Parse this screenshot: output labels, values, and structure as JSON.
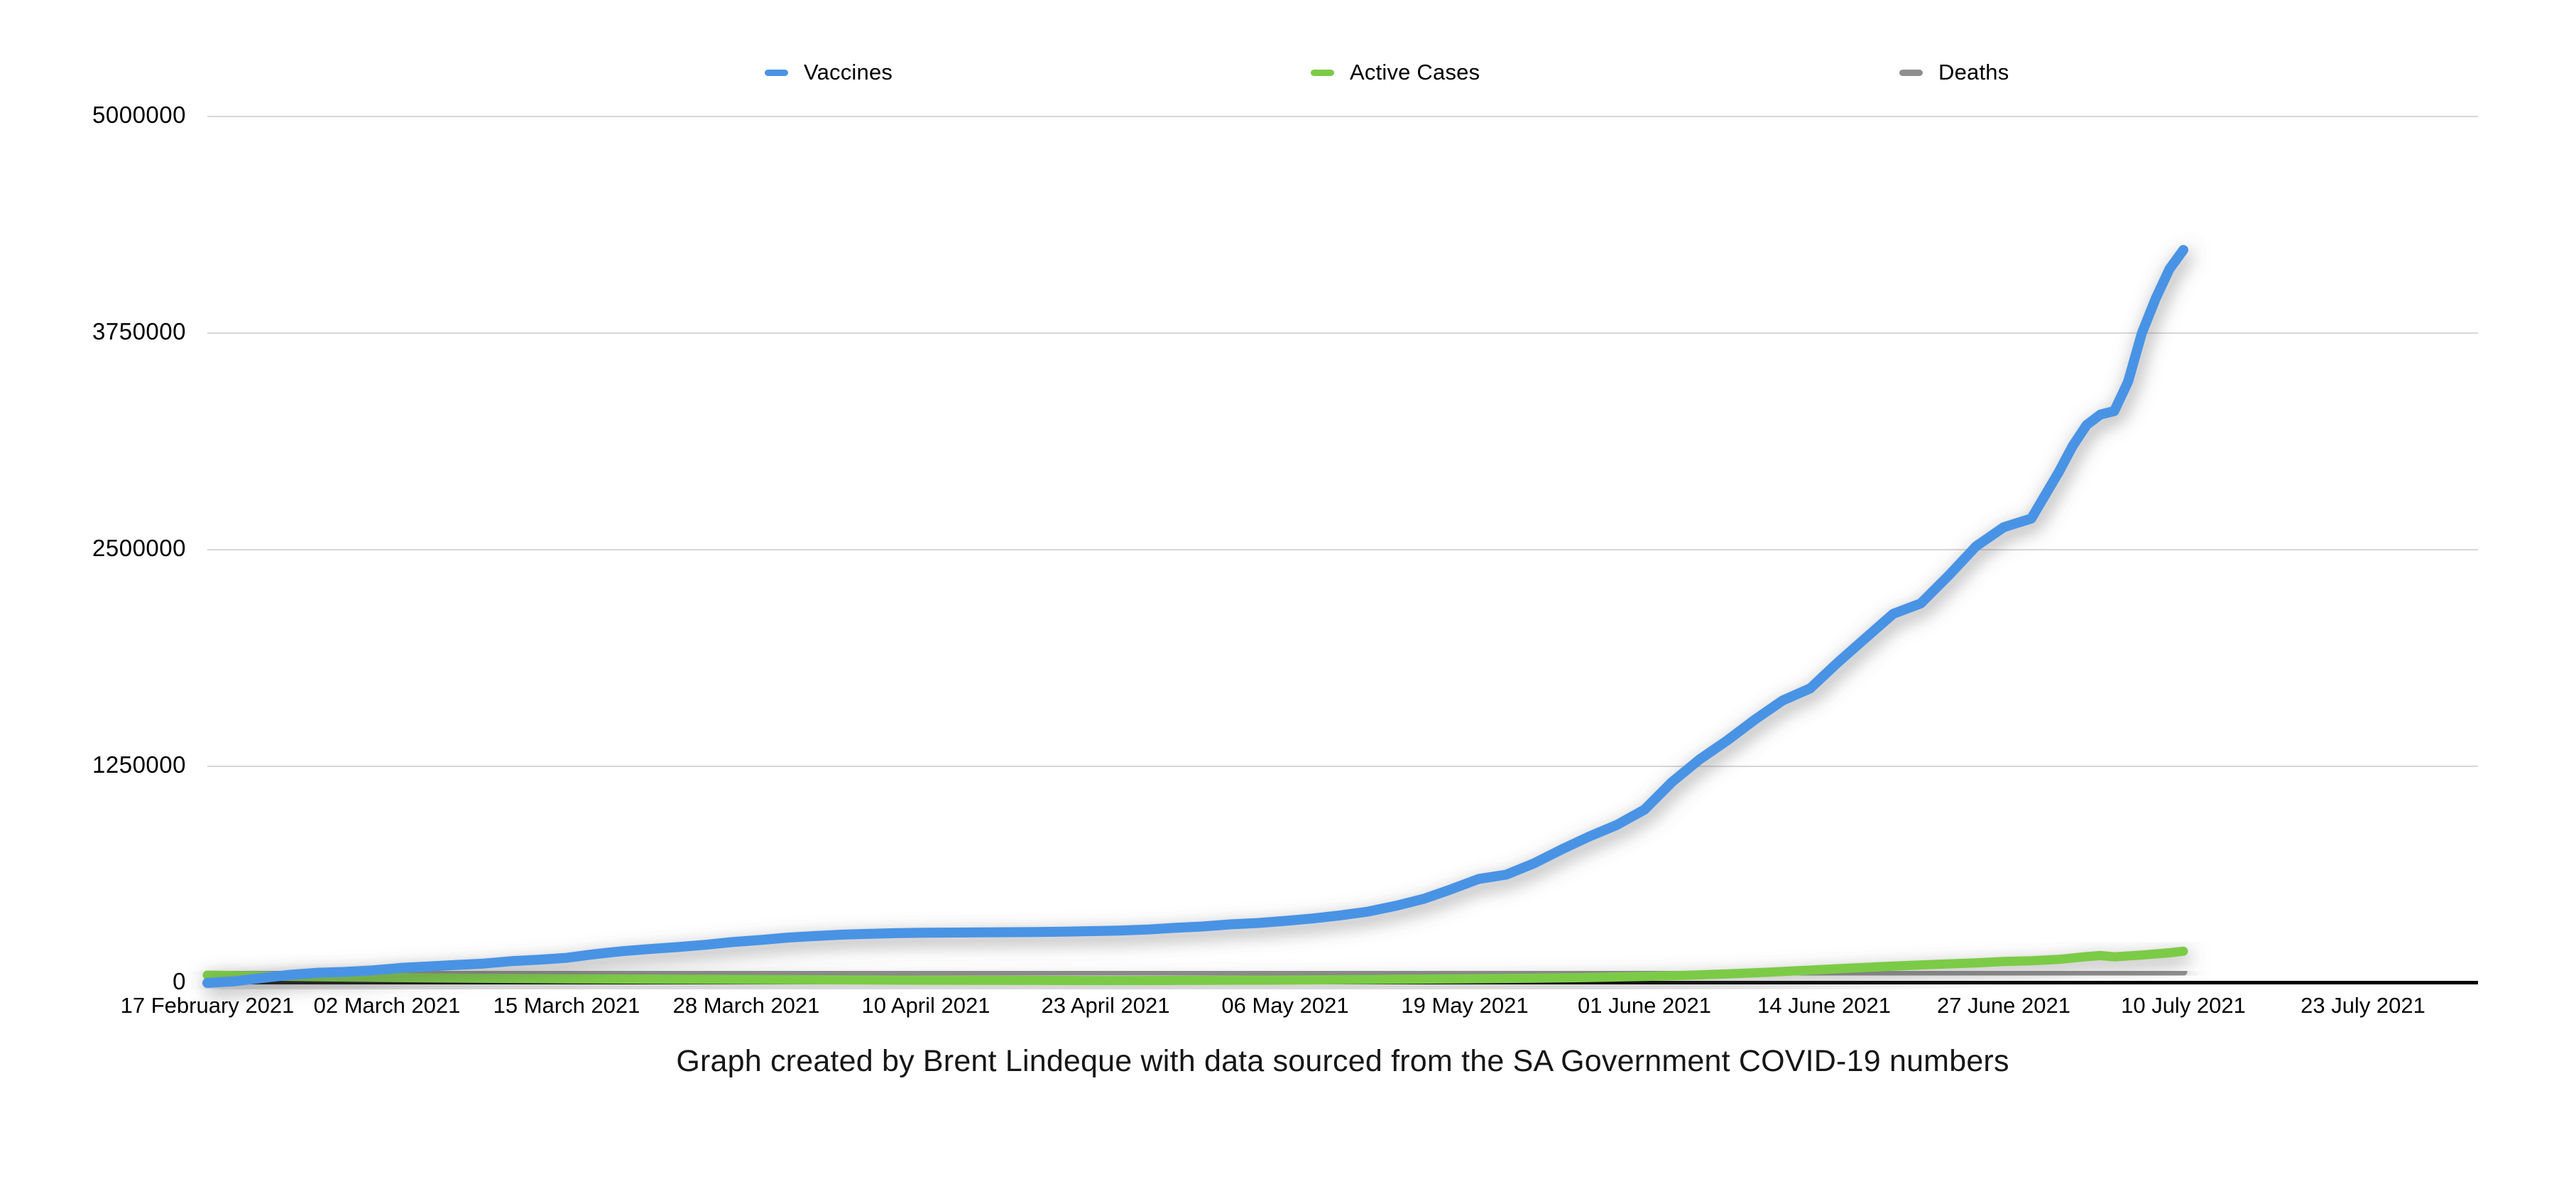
{
  "chart_data": {
    "type": "line",
    "title": "",
    "caption": "Graph created by Brent Lindeque with data sourced from the SA Government COVID-19 numbers",
    "legend_position": "top",
    "grid": "horizontal",
    "ylim": [
      0,
      5000000
    ],
    "y_ticks": [
      0,
      1250000,
      2500000,
      3750000,
      5000000
    ],
    "y_tick_labels_desc": [
      "5000000",
      "3750000",
      "2500000",
      "1250000",
      "0"
    ],
    "x_day_zero": "17 February 2021",
    "x_tick_interval_days": 13,
    "x_tick_days": [
      0,
      13,
      26,
      39,
      52,
      65,
      78,
      91,
      104,
      117,
      130,
      143,
      156
    ],
    "x_tick_labels": [
      "17 February 2021",
      "02 March 2021",
      "15 March 2021",
      "28 March 2021",
      "10 April 2021",
      "23 April 2021",
      "06 May 2021",
      "19 May 2021",
      "01 June 2021",
      "14 June 2021",
      "27 June 2021",
      "10 July 2021",
      "23 July 2021"
    ],
    "series": [
      {
        "name": "Vaccines",
        "color": "#4a93e5",
        "stroke_width": 14,
        "points": [
          [
            0,
            0
          ],
          [
            2,
            10000
          ],
          [
            4,
            29000
          ],
          [
            6,
            47000
          ],
          [
            8,
            59000
          ],
          [
            10,
            64000
          ],
          [
            12,
            73000
          ],
          [
            14,
            87000
          ],
          [
            16,
            95000
          ],
          [
            18,
            104000
          ],
          [
            20,
            112000
          ],
          [
            22,
            126000
          ],
          [
            24,
            134000
          ],
          [
            26,
            145000
          ],
          [
            28,
            166000
          ],
          [
            30,
            183000
          ],
          [
            32,
            196000
          ],
          [
            34,
            207000
          ],
          [
            36,
            220000
          ],
          [
            38,
            236000
          ],
          [
            40,
            248000
          ],
          [
            42,
            262000
          ],
          [
            44,
            271000
          ],
          [
            46,
            279000
          ],
          [
            48,
            284000
          ],
          [
            50,
            288000
          ],
          [
            52,
            290000
          ],
          [
            54,
            291000
          ],
          [
            56,
            292000
          ],
          [
            58,
            293000
          ],
          [
            60,
            294000
          ],
          [
            62,
            296000
          ],
          [
            64,
            299000
          ],
          [
            66,
            302000
          ],
          [
            68,
            308000
          ],
          [
            70,
            318000
          ],
          [
            72,
            326000
          ],
          [
            74,
            338000
          ],
          [
            76,
            346000
          ],
          [
            78,
            358000
          ],
          [
            80,
            372000
          ],
          [
            82,
            390000
          ],
          [
            84,
            412000
          ],
          [
            86,
            445000
          ],
          [
            88,
            485000
          ],
          [
            90,
            540000
          ],
          [
            92,
            600000
          ],
          [
            94,
            625000
          ],
          [
            96,
            690000
          ],
          [
            98,
            770000
          ],
          [
            100,
            845000
          ],
          [
            102,
            912000
          ],
          [
            104,
            1000000
          ],
          [
            106,
            1160000
          ],
          [
            108,
            1290000
          ],
          [
            110,
            1400000
          ],
          [
            112,
            1520000
          ],
          [
            114,
            1630000
          ],
          [
            116,
            1700000
          ],
          [
            118,
            1850000
          ],
          [
            120,
            1990000
          ],
          [
            122,
            2130000
          ],
          [
            124,
            2190000
          ],
          [
            126,
            2350000
          ],
          [
            128,
            2520000
          ],
          [
            130,
            2630000
          ],
          [
            132,
            2680000
          ],
          [
            134,
            2950000
          ],
          [
            135,
            3100000
          ],
          [
            136,
            3220000
          ],
          [
            137,
            3280000
          ],
          [
            138,
            3300000
          ],
          [
            139,
            3470000
          ],
          [
            140,
            3750000
          ],
          [
            141,
            3950000
          ],
          [
            142,
            4120000
          ],
          [
            143,
            4230000
          ]
        ]
      },
      {
        "name": "Active Cases",
        "color": "#7ccb46",
        "stroke_width": 13,
        "points": [
          [
            0,
            45000
          ],
          [
            4,
            40000
          ],
          [
            8,
            36000
          ],
          [
            13,
            32000
          ],
          [
            20,
            27000
          ],
          [
            26,
            24000
          ],
          [
            32,
            22000
          ],
          [
            39,
            20000
          ],
          [
            46,
            18000
          ],
          [
            52,
            16000
          ],
          [
            58,
            15000
          ],
          [
            65,
            14000
          ],
          [
            72,
            15000
          ],
          [
            78,
            17000
          ],
          [
            84,
            20000
          ],
          [
            91,
            24000
          ],
          [
            96,
            28000
          ],
          [
            100,
            32000
          ],
          [
            104,
            38000
          ],
          [
            107,
            44000
          ],
          [
            110,
            52000
          ],
          [
            113,
            62000
          ],
          [
            116,
            74000
          ],
          [
            119,
            86000
          ],
          [
            122,
            97000
          ],
          [
            125,
            107000
          ],
          [
            128,
            116000
          ],
          [
            130,
            124000
          ],
          [
            132,
            128000
          ],
          [
            134,
            136000
          ],
          [
            136,
            152000
          ],
          [
            137,
            158000
          ],
          [
            138,
            151000
          ],
          [
            140,
            161000
          ],
          [
            142,
            174000
          ],
          [
            143,
            183000
          ]
        ]
      },
      {
        "name": "Deaths",
        "color": "#8f8f8f",
        "stroke_width": 11,
        "points": [
          [
            0,
            48000
          ],
          [
            10,
            49500
          ],
          [
            20,
            50800
          ],
          [
            30,
            51900
          ],
          [
            40,
            52800
          ],
          [
            50,
            53500
          ],
          [
            60,
            54100
          ],
          [
            70,
            54700
          ],
          [
            80,
            55300
          ],
          [
            90,
            55900
          ],
          [
            100,
            56600
          ],
          [
            108,
            57600
          ],
          [
            116,
            58600
          ],
          [
            124,
            59800
          ],
          [
            130,
            61000
          ],
          [
            136,
            62300
          ],
          [
            140,
            63300
          ],
          [
            143,
            64200
          ]
        ]
      }
    ]
  }
}
